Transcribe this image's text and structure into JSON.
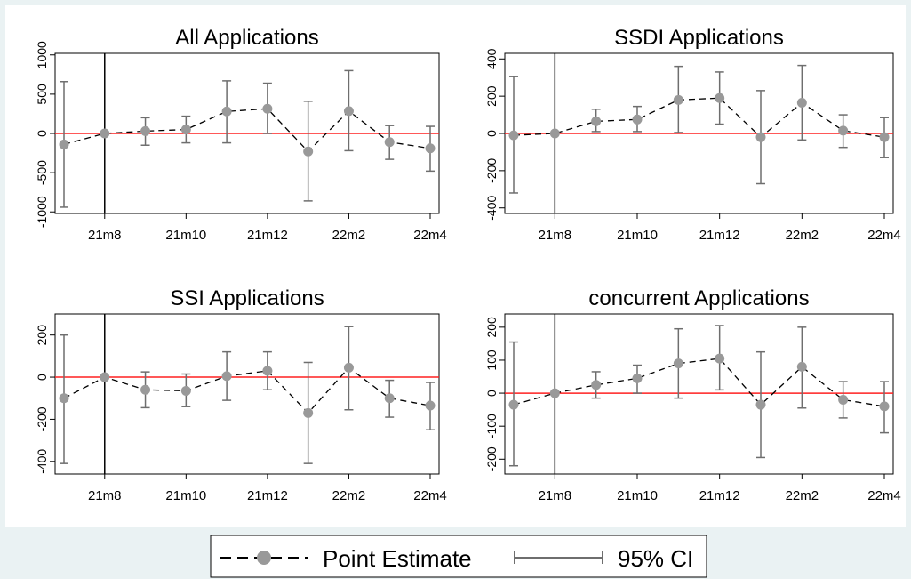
{
  "colors": {
    "background": "#eaf2f3",
    "panel": "#ffffff",
    "estimate_marker": "#999999",
    "ci": "#6e6e6e",
    "zero_line": "#ff2020",
    "event_line": "#000000"
  },
  "chart_data": [
    {
      "type": "scatter",
      "title": "All Applications",
      "x": [
        "21m7",
        "21m8",
        "21m9",
        "21m10",
        "21m11",
        "21m12",
        "22m1",
        "22m2",
        "22m3",
        "22m4"
      ],
      "x_tick_labels": [
        "21m8",
        "21m10",
        "21m12",
        "22m2",
        "22m4"
      ],
      "y_ticks": [
        -1000,
        -500,
        0,
        500,
        1000
      ],
      "y_tick_labels": [
        "-1000",
        "-500",
        "0",
        "500",
        "1000"
      ],
      "ylim": [
        -1020,
        1020
      ],
      "event_line_x": "21m8",
      "reference_line_y": 0,
      "series": [
        {
          "name": "Point Estimate",
          "values": [
            -140,
            0,
            30,
            50,
            280,
            315,
            -230,
            285,
            -110,
            -190
          ],
          "ci_low": [
            -940,
            0,
            -150,
            -120,
            -120,
            0,
            -860,
            -220,
            -330,
            -480
          ],
          "ci_high": [
            660,
            0,
            200,
            220,
            670,
            640,
            410,
            800,
            100,
            90
          ]
        }
      ]
    },
    {
      "type": "scatter",
      "title": "SSDI Applications",
      "x": [
        "21m7",
        "21m8",
        "21m9",
        "21m10",
        "21m11",
        "21m12",
        "22m1",
        "22m2",
        "22m3",
        "22m4"
      ],
      "x_tick_labels": [
        "21m8",
        "21m10",
        "21m12",
        "22m2",
        "22m4"
      ],
      "y_ticks": [
        -400,
        -200,
        0,
        200,
        400
      ],
      "y_tick_labels": [
        "-400",
        "-200",
        "0",
        "200",
        "400"
      ],
      "ylim": [
        -430,
        430
      ],
      "event_line_x": "21m8",
      "reference_line_y": 0,
      "series": [
        {
          "name": "Point Estimate",
          "values": [
            -10,
            0,
            65,
            75,
            180,
            190,
            -20,
            165,
            15,
            -20
          ],
          "ci_low": [
            -320,
            0,
            10,
            10,
            5,
            50,
            -270,
            -35,
            -75,
            -130
          ],
          "ci_high": [
            305,
            0,
            130,
            145,
            360,
            330,
            230,
            365,
            100,
            85
          ]
        }
      ]
    },
    {
      "type": "scatter",
      "title": "SSI Applications",
      "x": [
        "21m7",
        "21m8",
        "21m9",
        "21m10",
        "21m11",
        "21m12",
        "22m1",
        "22m2",
        "22m3",
        "22m4"
      ],
      "x_tick_labels": [
        "21m8",
        "21m10",
        "21m12",
        "22m2",
        "22m4"
      ],
      "y_ticks": [
        -400,
        -200,
        0,
        200
      ],
      "y_tick_labels": [
        "-400",
        "-200",
        "0",
        "200"
      ],
      "ylim": [
        -460,
        300
      ],
      "event_line_x": "21m8",
      "reference_line_y": 0,
      "series": [
        {
          "name": "Point Estimate",
          "values": [
            -100,
            0,
            -60,
            -65,
            5,
            30,
            -170,
            45,
            -100,
            -135
          ],
          "ci_low": [
            -410,
            0,
            -145,
            -140,
            -110,
            -60,
            -410,
            -155,
            -190,
            -250
          ],
          "ci_high": [
            200,
            0,
            25,
            15,
            120,
            120,
            70,
            240,
            -15,
            -25
          ]
        }
      ]
    },
    {
      "type": "scatter",
      "title": "concurrent Applications",
      "x": [
        "21m7",
        "21m8",
        "21m9",
        "21m10",
        "21m11",
        "21m12",
        "22m1",
        "22m2",
        "22m3",
        "22m4"
      ],
      "x_tick_labels": [
        "21m8",
        "21m10",
        "21m12",
        "22m2",
        "22m4"
      ],
      "y_ticks": [
        -200,
        -100,
        0,
        100,
        200
      ],
      "y_tick_labels": [
        "-200",
        "-100",
        "0",
        "100",
        "200"
      ],
      "ylim": [
        -245,
        240
      ],
      "event_line_x": "21m8",
      "reference_line_y": 0,
      "series": [
        {
          "name": "Point Estimate",
          "values": [
            -35,
            0,
            25,
            45,
            90,
            105,
            -35,
            80,
            -20,
            -40
          ],
          "ci_low": [
            -220,
            0,
            -15,
            0,
            -15,
            10,
            -195,
            -45,
            -75,
            -120
          ],
          "ci_high": [
            155,
            0,
            65,
            85,
            195,
            205,
            125,
            200,
            35,
            35
          ]
        }
      ]
    }
  ],
  "legend": {
    "estimate_label": "Point Estimate",
    "ci_label": "95% CI"
  }
}
